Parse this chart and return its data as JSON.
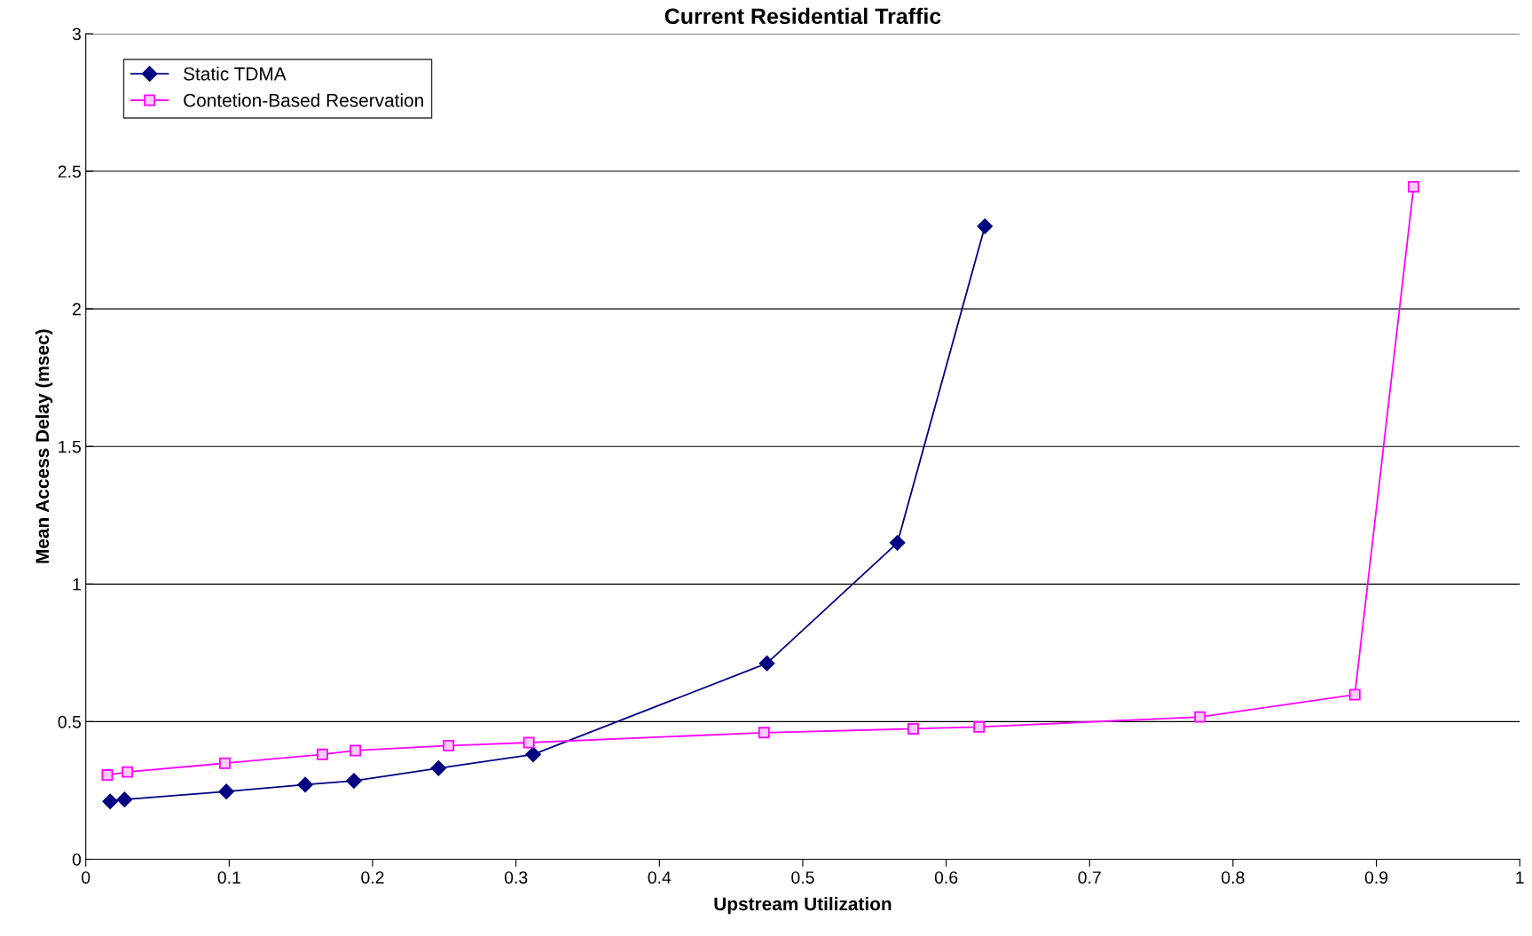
{
  "chart_data": {
    "type": "line",
    "title": "Current Residential Traffic",
    "xlabel": "Upstream Utilization",
    "ylabel": "Mean Access Delay (msec)",
    "xlim": [
      0,
      1
    ],
    "xticks": [
      0,
      0.1,
      0.2,
      0.3,
      0.4,
      0.5,
      0.6,
      0.7,
      0.8,
      0.9,
      1
    ],
    "ylim": [
      0,
      3
    ],
    "yticks": [
      0,
      0.5,
      1,
      1.5,
      2,
      2.5,
      3
    ],
    "grid": "y",
    "legend": "top left",
    "line_style": "solid",
    "series": [
      {
        "name": "Static TDMA",
        "color": "#000080",
        "marker": "diamond",
        "x": [
          0.017,
          0.027,
          0.098,
          0.153,
          0.187,
          0.246,
          0.312,
          0.475,
          0.566,
          0.627
        ],
        "values": [
          0.21,
          0.217,
          0.246,
          0.271,
          0.285,
          0.331,
          0.381,
          0.712,
          1.15,
          2.3
        ]
      },
      {
        "name": "Contetion-Based Reservation",
        "color": "#ff00ff",
        "marker": "square",
        "x": [
          0.015,
          0.029,
          0.097,
          0.165,
          0.188,
          0.253,
          0.309,
          0.473,
          0.577,
          0.623,
          0.777,
          0.885,
          0.926
        ],
        "values": [
          0.306,
          0.317,
          0.349,
          0.381,
          0.395,
          0.413,
          0.424,
          0.46,
          0.474,
          0.481,
          0.517,
          0.598,
          2.444
        ]
      }
    ]
  }
}
